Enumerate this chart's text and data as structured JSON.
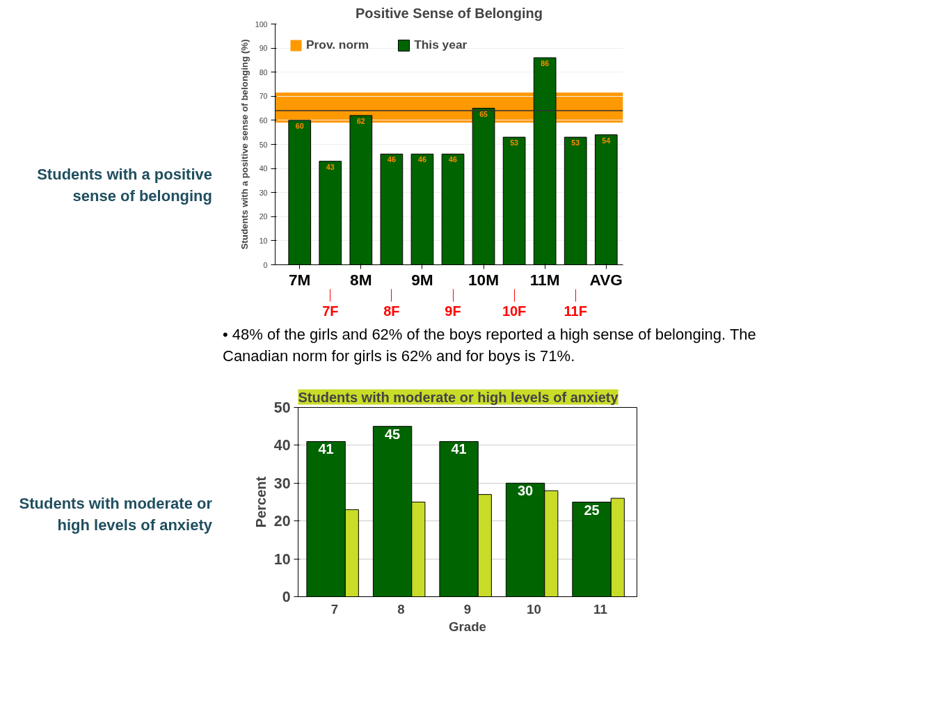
{
  "chart_data": [
    {
      "type": "bar",
      "title": "Positive Sense of Belonging",
      "ylabel": "Students with a positive sense of belonging (%)",
      "categories": [
        "7M",
        "7F",
        "8M",
        "8F",
        "9M",
        "9F",
        "10M",
        "10F",
        "11M",
        "11F",
        "AVG"
      ],
      "series": [
        {
          "name": "This year",
          "color": "#006400",
          "values": [
            60,
            43,
            62,
            46,
            46,
            46,
            65,
            53,
            86,
            53,
            54
          ]
        }
      ],
      "data_labels": true,
      "ylim": [
        0,
        100
      ],
      "yticks": [
        0,
        10,
        20,
        30,
        40,
        50,
        60,
        70,
        80,
        90,
        100
      ],
      "grid": "y",
      "legend": "top left",
      "bands": [
        {
          "axis": "y",
          "from": 59,
          "to": 71.5,
          "label": "Prov. norm",
          "color": "#ff9900"
        }
      ],
      "ref_lines": [
        {
          "axis": "y",
          "value": 64,
          "color": "#333333"
        }
      ],
      "annotations": [
        "Students with a positive sense of belonging",
        "• 48% of the girls and 62% of the boys reported a high sense of belonging. The Canadian norm for girls is 62% and for boys is 71%."
      ]
    },
    {
      "type": "bar",
      "title": "Students with moderate or high levels of anxiety",
      "xlabel": "Grade",
      "ylabel": "Percent",
      "categories": [
        "7",
        "8",
        "9",
        "10",
        "11"
      ],
      "series": [
        {
          "color": "#006400",
          "values": [
            41,
            45,
            41,
            30,
            25
          ],
          "value_labels": [
            "41",
            "45",
            "41",
            "30",
            "25"
          ]
        },
        {
          "color": "#c8dc28",
          "values": [
            23,
            25,
            27,
            28,
            26
          ]
        }
      ],
      "ylim": [
        0,
        50
      ],
      "yticks": [
        0,
        10,
        20,
        30,
        40,
        50
      ],
      "grid": "y",
      "annotations": [
        "Students with moderate or high levels of anxiety"
      ]
    }
  ]
}
